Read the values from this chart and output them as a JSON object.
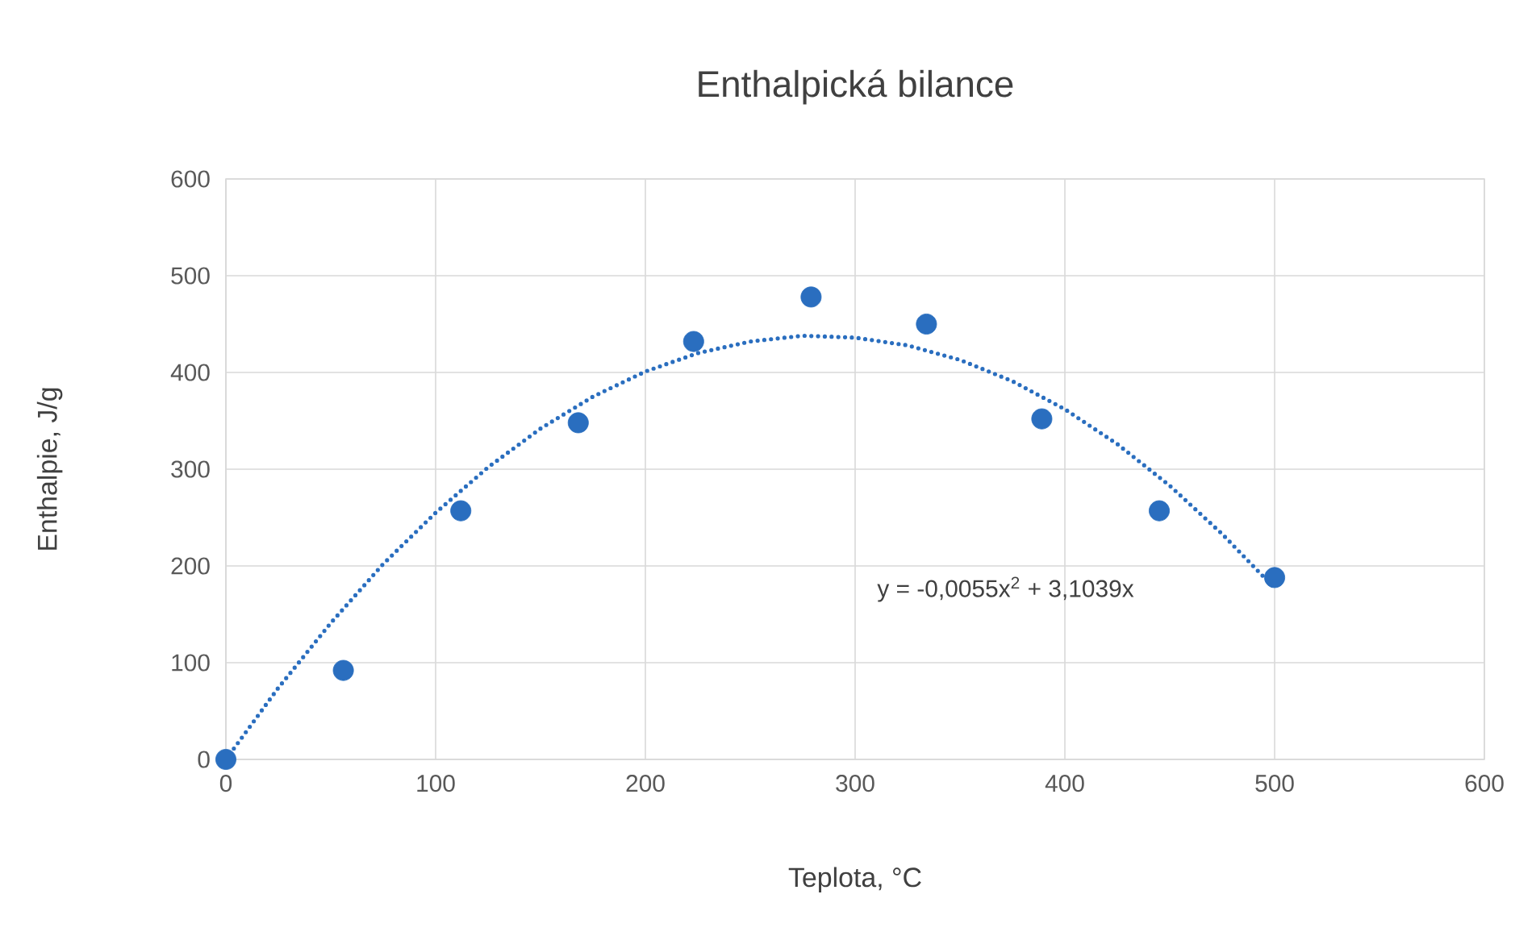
{
  "chart_data": {
    "type": "scatter",
    "title": "Enthalpická bilance",
    "xlabel": "Teplota, °C",
    "ylabel": "Enthalpie, J/g",
    "xlim": [
      0,
      600
    ],
    "ylim": [
      0,
      600
    ],
    "xticks": [
      0,
      100,
      200,
      300,
      400,
      500,
      600
    ],
    "yticks": [
      0,
      100,
      200,
      300,
      400,
      500,
      600
    ],
    "grid": true,
    "series": [
      {
        "color": "#2a6ebf",
        "marker": "circle",
        "x": [
          0,
          56,
          112,
          168,
          223,
          279,
          334,
          389,
          445,
          500
        ],
        "values": [
          0,
          92,
          257,
          348,
          432,
          478,
          450,
          352,
          257,
          188
        ]
      },
      {
        "type": "line",
        "color": "#2a6ebf",
        "marker": "none",
        "line_style": "dotted",
        "x": [
          0,
          25,
          50,
          75,
          100,
          125,
          150,
          175,
          200,
          225,
          250,
          275,
          300,
          325,
          350,
          375,
          400,
          425,
          450,
          475,
          500
        ],
        "values": [
          0,
          74,
          141,
          202,
          255,
          302,
          342,
          375,
          401,
          420,
          432,
          438,
          436,
          428,
          413,
          391,
          362,
          326,
          283,
          233,
          177
        ]
      }
    ],
    "annotations": [
      "y = -0,0055x$^{2}$ + 3,1039x"
    ]
  }
}
